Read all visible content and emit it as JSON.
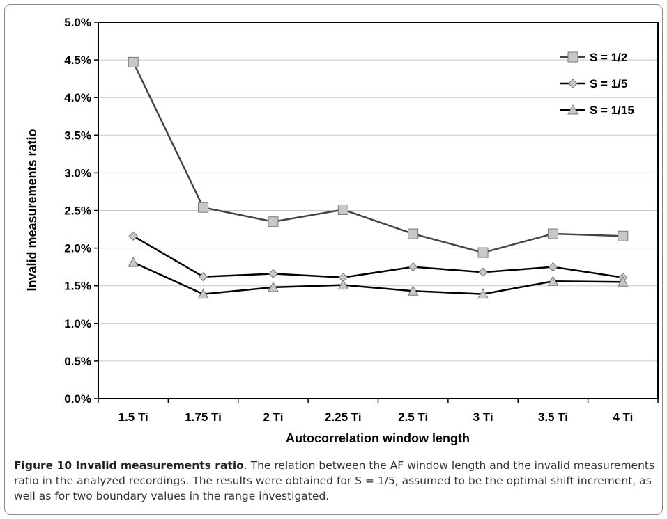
{
  "chart_data": {
    "type": "line",
    "xlabel": "Autocorrelation window length",
    "ylabel": "Invalid measurements ratio",
    "categories": [
      "1.5 Ti",
      "1.75 Ti",
      "2 Ti",
      "2.25 Ti",
      "2.5 Ti",
      "3 Ti",
      "3.5 Ti",
      "4 Ti"
    ],
    "ylim": [
      0,
      5
    ],
    "yticks": [
      "0.0%",
      "0.5%",
      "1.0%",
      "1.5%",
      "2.0%",
      "2.5%",
      "3.0%",
      "3.5%",
      "4.0%",
      "4.5%",
      "5.0%"
    ],
    "grid": true,
    "legend_position": "top-right",
    "series": [
      {
        "name": "S = 1/2",
        "marker": "square",
        "line_color": "#444444",
        "marker_fill": "#c8c8c8",
        "values": [
          4.47,
          2.54,
          2.35,
          2.51,
          2.19,
          1.94,
          2.19,
          2.16
        ]
      },
      {
        "name": "S = 1/5",
        "marker": "diamond",
        "line_color": "#000000",
        "marker_fill": "#c8c8c8",
        "values": [
          2.16,
          1.62,
          1.66,
          1.61,
          1.75,
          1.68,
          1.75,
          1.61
        ]
      },
      {
        "name": "S = 1/15",
        "marker": "triangle",
        "line_color": "#000000",
        "marker_fill": "#c8c8c8",
        "values": [
          1.81,
          1.39,
          1.48,
          1.51,
          1.43,
          1.39,
          1.56,
          1.55
        ]
      }
    ]
  },
  "caption": {
    "title": "Figure 10 Invalid measurements ratio",
    "text": ". The relation between the AF window length and the invalid measurements ratio in the analyzed recordings. The results were obtained for S = 1/5, assumed to be the optimal shift increment, as well as for two boundary values in the range investigated."
  }
}
